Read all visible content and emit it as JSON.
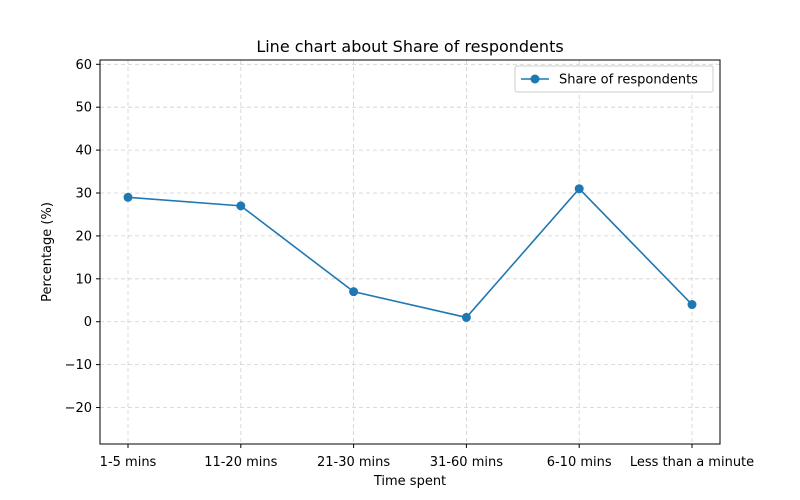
{
  "chart_data": {
    "type": "line",
    "title": "Line chart about Share of respondents",
    "xlabel": "Time spent",
    "ylabel": "Percentage (%)",
    "categories": [
      "1-5 mins",
      "11-20 mins",
      "21-30 mins",
      "31-60 mins",
      "6-10 mins",
      "Less than a minute"
    ],
    "series": [
      {
        "name": "Share of respondents",
        "values": [
          29,
          27,
          7,
          1,
          31,
          4
        ],
        "color": "#1f77b4"
      }
    ],
    "ylim": [
      -28.5,
      61
    ],
    "yticks": [
      -20,
      -10,
      0,
      10,
      20,
      30,
      40,
      50,
      60
    ],
    "ytick_labels": [
      "−20",
      "−10",
      "0",
      "10",
      "20",
      "30",
      "40",
      "50",
      "60"
    ],
    "grid": true,
    "legend": "top-right"
  }
}
